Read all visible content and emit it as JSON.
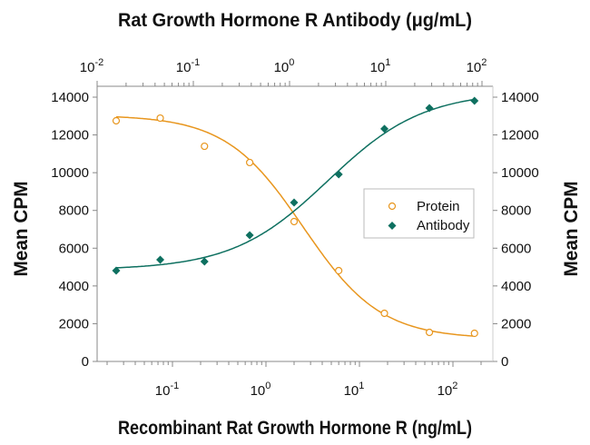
{
  "chart_data": {
    "type": "scatter",
    "title": "Rat Growth Hormone R Antibody (μg/mL)",
    "xlabel": "Recombinant Rat Growth Hormone R (ng/mL)",
    "ylabel": "Mean CPM",
    "y2label": "Mean CPM",
    "x_scale": "log",
    "xlim": [
      0.016,
      267
    ],
    "x_top_scale": "log",
    "x_top_lim": [
      0.01,
      130
    ],
    "ylim": [
      0,
      14000
    ],
    "x_ticks": [
      {
        "base": "10",
        "exp": "-1"
      },
      {
        "base": "10",
        "exp": "0"
      },
      {
        "base": "10",
        "exp": "1"
      },
      {
        "base": "10",
        "exp": "2"
      }
    ],
    "x_top_ticks": [
      {
        "base": "10",
        "exp": "-2"
      },
      {
        "base": "10",
        "exp": "-1"
      },
      {
        "base": "10",
        "exp": "0"
      },
      {
        "base": "10",
        "exp": "1"
      },
      {
        "base": "10",
        "exp": "2"
      }
    ],
    "y_ticks": [
      "0",
      "2000",
      "4000",
      "6000",
      "8000",
      "10000",
      "12000",
      "14000"
    ],
    "grid": false,
    "legend_position": "center-right",
    "series": [
      {
        "name": "Protein",
        "marker": "open-circle",
        "color": "#e8961e",
        "x": [
          0.025,
          0.074,
          0.22,
          0.67,
          2,
          6,
          18.5,
          56,
          170
        ],
        "y": [
          12750,
          12890,
          11400,
          10540,
          7410,
          4810,
          2550,
          1540,
          1490
        ]
      },
      {
        "name": "Antibody",
        "marker": "filled-diamond",
        "color": "#0e7060",
        "x": [
          0.025,
          0.074,
          0.22,
          0.67,
          2,
          6,
          18.5,
          56,
          170
        ],
        "y": [
          4810,
          5390,
          5290,
          6690,
          8420,
          9910,
          12320,
          13420,
          13810
        ]
      }
    ]
  }
}
